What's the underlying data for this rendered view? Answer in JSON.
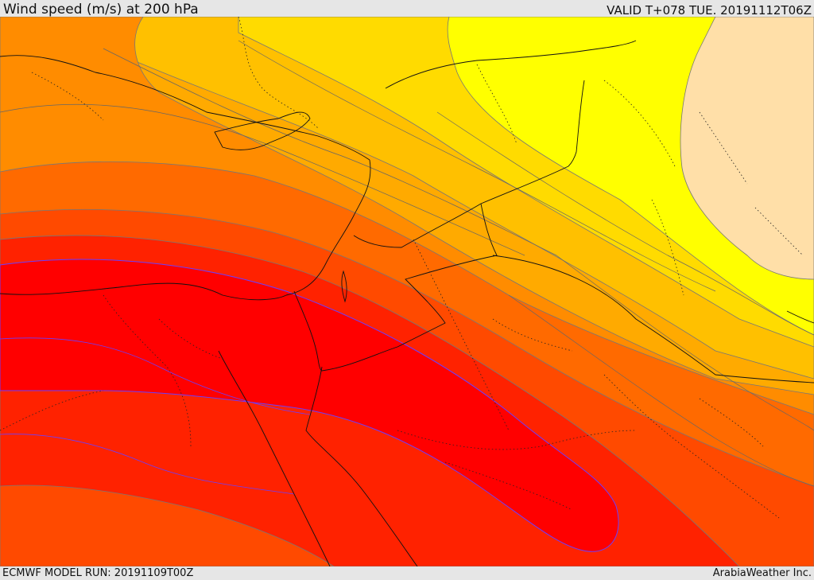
{
  "header": {
    "title": "Wind speed (m/s) at 200 hPa",
    "valid_time": "VALID T+078 TUE. 20191112T06Z"
  },
  "footer": {
    "model_run": "ECMWF MODEL RUN: 20191109T00Z",
    "credit": "ArabiaWeather Inc."
  },
  "map": {
    "field": "wind-speed-200hPa",
    "colors": {
      "jet_core": "#ff0000",
      "very_strong": "#ff2200",
      "strong": "#ff4a00",
      "moderate_high": "#ff6a00",
      "moderate": "#ff8c00",
      "moderate_low": "#ffaa00",
      "light_high": "#ffc000",
      "light": "#ffdb00",
      "very_light": "#ffff00",
      "calm": "#ffdfa8"
    }
  }
}
